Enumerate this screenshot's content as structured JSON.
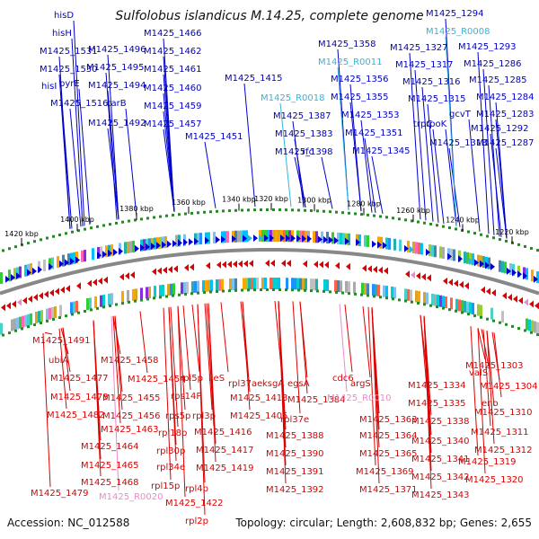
{
  "title": "Sulfolobus islandicus M.14.25, complete genome",
  "footer": {
    "accession": "Accession: NC_012588",
    "topology": "Topology: circular; Length: 2,608,832 bp; Genes: 2,655"
  },
  "colors": {
    "forward": "#0000cc",
    "reverse": "#dd0000",
    "rna_forward": "#33b5dd",
    "rna_reverse": "#ee88cc",
    "backbone": "#888888",
    "tick": "#228b22"
  },
  "scale_ticks": [
    "1420 kbp",
    "1400 kbp",
    "1380 kbp",
    "1360 kbp",
    "1340 kbp",
    "1320 kbp",
    "1300 kbp",
    "1280 kbp",
    "1260 kbp",
    "1240 kbp",
    "1220 kbp"
  ],
  "upper_labels": [
    {
      "text": "hisD",
      "type": "f"
    },
    {
      "text": "hisH",
      "type": "f"
    },
    {
      "text": "M1425_1531",
      "type": "f"
    },
    {
      "text": "M1425_1530",
      "type": "f"
    },
    {
      "text": "hisI",
      "type": "f"
    },
    {
      "text": "pyrE",
      "type": "f"
    },
    {
      "text": "M1425_1516",
      "type": "f"
    },
    {
      "text": "M1425_1496",
      "type": "f"
    },
    {
      "text": "M1425_1495",
      "type": "f"
    },
    {
      "text": "M1425_1494",
      "type": "f"
    },
    {
      "text": "carB",
      "type": "f"
    },
    {
      "text": "M1425_1492",
      "type": "f"
    },
    {
      "text": "M1425_1466",
      "type": "f"
    },
    {
      "text": "M1425_1462",
      "type": "f"
    },
    {
      "text": "M1425_1461",
      "type": "f"
    },
    {
      "text": "M1425_1460",
      "type": "f"
    },
    {
      "text": "M1425_1459",
      "type": "f"
    },
    {
      "text": "M1425_1457",
      "type": "f"
    },
    {
      "text": "M1425_1451",
      "type": "f"
    },
    {
      "text": "M1425_1415",
      "type": "f"
    },
    {
      "text": "M1425_R0018",
      "type": "rf"
    },
    {
      "text": "M1425_1387",
      "type": "f"
    },
    {
      "text": "M1425_1383",
      "type": "f"
    },
    {
      "text": "M1425_1398",
      "type": "f"
    },
    {
      "text": "rfc",
      "type": "f"
    },
    {
      "text": "M1425_1358",
      "type": "f"
    },
    {
      "text": "M1425_R0011",
      "type": "rf"
    },
    {
      "text": "M1425_1356",
      "type": "f"
    },
    {
      "text": "M1425_1355",
      "type": "f"
    },
    {
      "text": "M1425_1353",
      "type": "f"
    },
    {
      "text": "M1425_1351",
      "type": "f"
    },
    {
      "text": "M1425_1345",
      "type": "f"
    },
    {
      "text": "M1425_1327",
      "type": "f"
    },
    {
      "text": "M1425_1317",
      "type": "f"
    },
    {
      "text": "M1425_1316",
      "type": "f"
    },
    {
      "text": "M1425_1315",
      "type": "f"
    },
    {
      "text": "trpC",
      "type": "f"
    },
    {
      "text": "rpoK",
      "type": "f"
    },
    {
      "text": "M1425_1313",
      "type": "f"
    },
    {
      "text": "gcvT",
      "type": "f"
    },
    {
      "text": "M1425_1294",
      "type": "f"
    },
    {
      "text": "M1425_R0008",
      "type": "rf"
    },
    {
      "text": "M1425_1293",
      "type": "f"
    },
    {
      "text": "M1425_1286",
      "type": "f"
    },
    {
      "text": "M1425_1285",
      "type": "f"
    },
    {
      "text": "M1425_1284",
      "type": "f"
    },
    {
      "text": "M1425_1283",
      "type": "f"
    },
    {
      "text": "M1425_1292",
      "type": "f"
    },
    {
      "text": "M1425_1287",
      "type": "f"
    }
  ],
  "lower_labels": [
    {
      "text": "M1425_1491",
      "type": "r"
    },
    {
      "text": "ubiA",
      "type": "r"
    },
    {
      "text": "M1425_1477",
      "type": "r"
    },
    {
      "text": "M1425_1478",
      "type": "r"
    },
    {
      "text": "M1425_1482",
      "type": "r"
    },
    {
      "text": "M1425_1458",
      "type": "r"
    },
    {
      "text": "M1425_1455",
      "type": "r"
    },
    {
      "text": "M1425_1456",
      "type": "r"
    },
    {
      "text": "M1425_1463",
      "type": "r"
    },
    {
      "text": "M1425_1464",
      "type": "r"
    },
    {
      "text": "M1425_1465",
      "type": "r"
    },
    {
      "text": "M1425_1468",
      "type": "r"
    },
    {
      "text": "M1425_1479",
      "type": "r"
    },
    {
      "text": "M1425_R0020",
      "type": "rr"
    },
    {
      "text": "M1425_1454",
      "type": "r"
    },
    {
      "text": "rps14P",
      "type": "r"
    },
    {
      "text": "rpl5p",
      "type": "r"
    },
    {
      "text": "rps5p",
      "type": "r"
    },
    {
      "text": "rpl18p",
      "type": "r"
    },
    {
      "text": "rpl30p",
      "type": "r"
    },
    {
      "text": "rpl34e",
      "type": "r"
    },
    {
      "text": "rpl15p",
      "type": "r"
    },
    {
      "text": "ileS",
      "type": "r"
    },
    {
      "text": "rpl3p",
      "type": "r"
    },
    {
      "text": "rpl4p",
      "type": "r"
    },
    {
      "text": "rpl2p",
      "type": "r"
    },
    {
      "text": "M1425_1416",
      "type": "r"
    },
    {
      "text": "M1425_1417",
      "type": "r"
    },
    {
      "text": "M1425_1419",
      "type": "r"
    },
    {
      "text": "M1425_1422",
      "type": "r"
    },
    {
      "text": "rpl37ae",
      "type": "r"
    },
    {
      "text": "M1425_1413",
      "type": "r"
    },
    {
      "text": "M1425_1405",
      "type": "r"
    },
    {
      "text": "ksgA",
      "type": "r"
    },
    {
      "text": "rpl37e",
      "type": "r"
    },
    {
      "text": "egsA",
      "type": "r"
    },
    {
      "text": "M1425_1384",
      "type": "r"
    },
    {
      "text": "M1425_1388",
      "type": "r"
    },
    {
      "text": "M1425_1390",
      "type": "r"
    },
    {
      "text": "M1425_1391",
      "type": "r"
    },
    {
      "text": "M1425_1392",
      "type": "r"
    },
    {
      "text": "cdc6",
      "type": "r"
    },
    {
      "text": "argS",
      "type": "r"
    },
    {
      "text": "M1425_R0010",
      "type": "rr"
    },
    {
      "text": "M1425_1363",
      "type": "r"
    },
    {
      "text": "M1425_1364",
      "type": "r"
    },
    {
      "text": "M1425_1365",
      "type": "r"
    },
    {
      "text": "M1425_1369",
      "type": "r"
    },
    {
      "text": "M1425_1371",
      "type": "r"
    },
    {
      "text": "M1425_1334",
      "type": "r"
    },
    {
      "text": "M1425_1335",
      "type": "r"
    },
    {
      "text": "M1425_1338",
      "type": "r"
    },
    {
      "text": "M1425_1340",
      "type": "r"
    },
    {
      "text": "M1425_1341",
      "type": "r"
    },
    {
      "text": "M1425_1342",
      "type": "r"
    },
    {
      "text": "M1425_1343",
      "type": "r"
    },
    {
      "text": "valS",
      "type": "r"
    },
    {
      "text": "M1425_1303",
      "type": "r"
    },
    {
      "text": "M1425_1304",
      "type": "r"
    },
    {
      "text": "eno",
      "type": "r"
    },
    {
      "text": "M1425_1310",
      "type": "r"
    },
    {
      "text": "M1425_1311",
      "type": "r"
    },
    {
      "text": "M1425_1312",
      "type": "r"
    },
    {
      "text": "M1425_1319",
      "type": "r"
    },
    {
      "text": "M1425_1320",
      "type": "r"
    }
  ]
}
